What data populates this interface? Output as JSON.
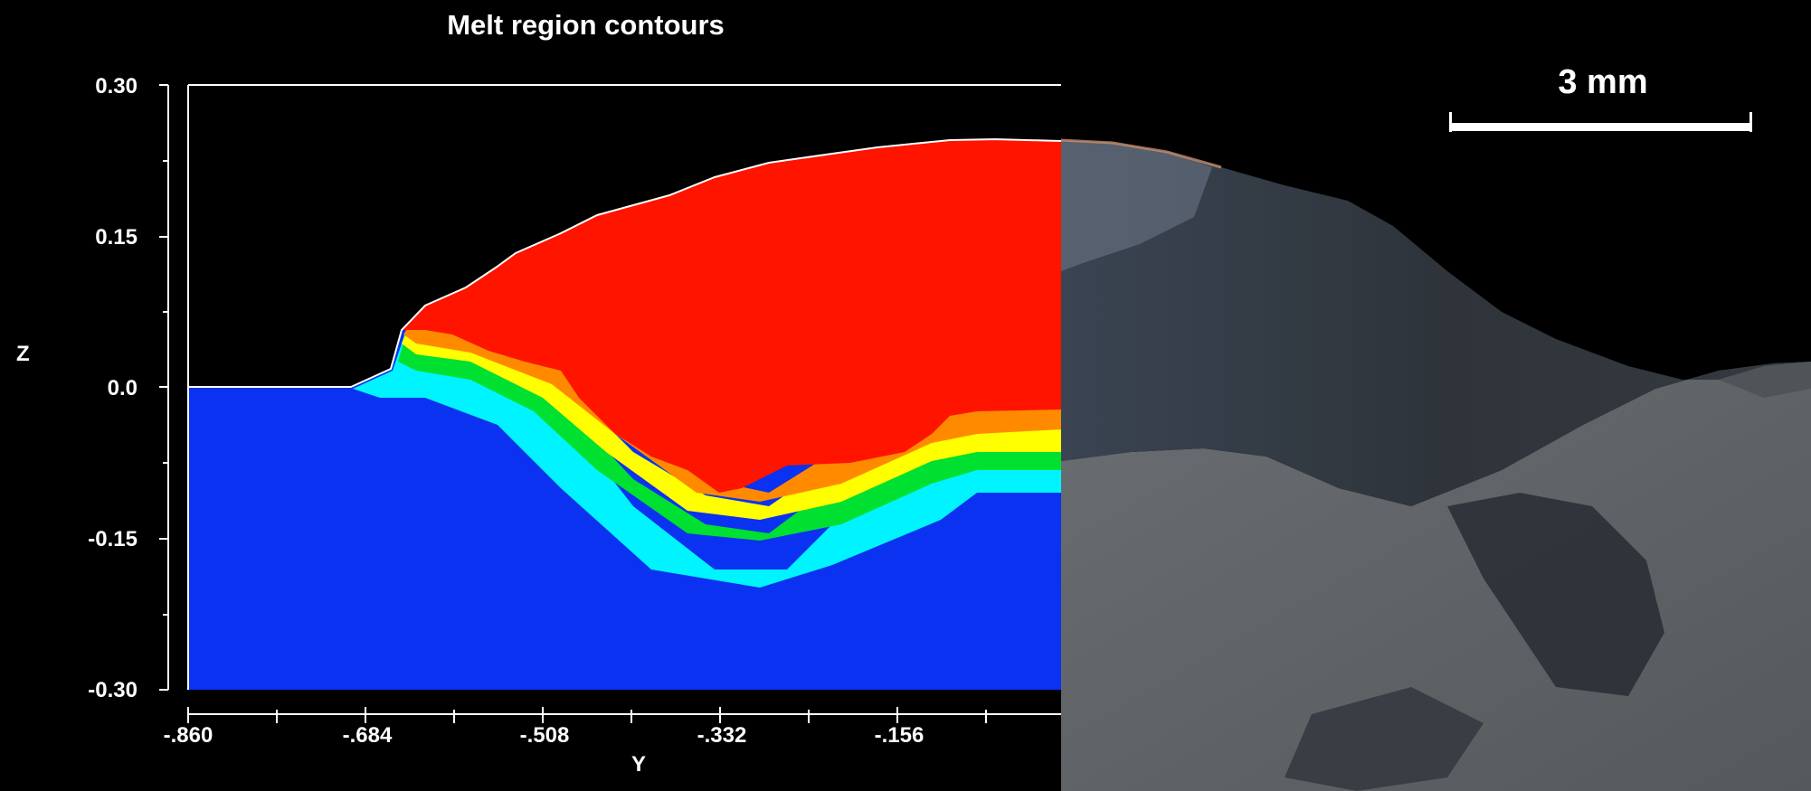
{
  "chart_data": {
    "type": "heatmap",
    "title": "Melt region contours",
    "xlabel": "Y",
    "ylabel": "Z",
    "x_ticks": [
      ".860",
      ".684",
      ".508",
      ".332",
      ".156"
    ],
    "y_ticks": [
      "0.30",
      "0.15",
      "0.0",
      "-0.15",
      "-0.30"
    ],
    "x_values": [
      -0.86,
      -0.684,
      -0.508,
      -0.332,
      -0.156
    ],
    "y_values": [
      0.3,
      0.15,
      0.0,
      -0.15,
      -0.3
    ],
    "xlim": [
      -0.86,
      0.0
    ],
    "ylim": [
      -0.3,
      0.3
    ],
    "colormap": {
      "melt": "#ff1400",
      "solid": "#0a32f0",
      "transition": [
        "#ffff00",
        "#00e030",
        "#00ffff"
      ]
    }
  },
  "photo": {
    "scale_bar_label": "3 mm"
  }
}
